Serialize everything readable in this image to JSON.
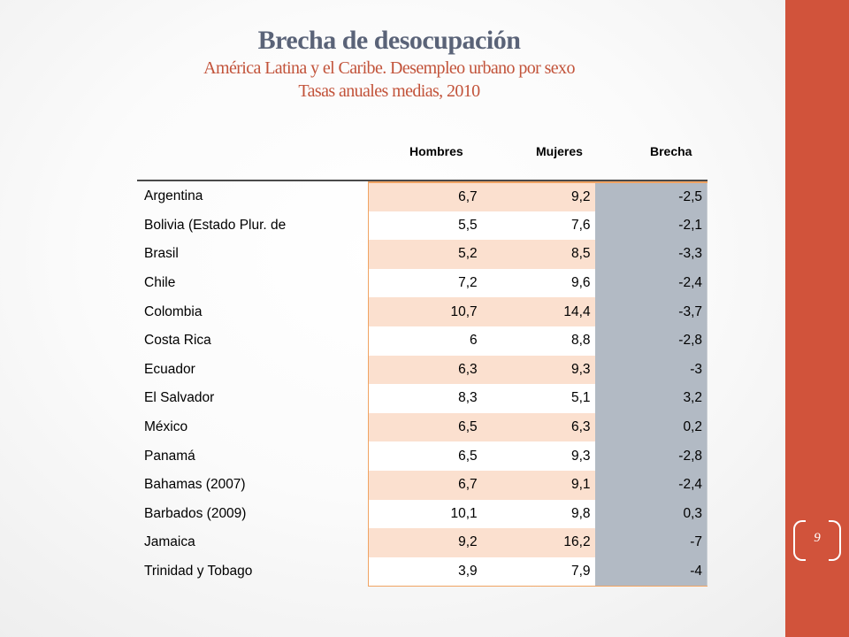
{
  "title": {
    "main": "Brecha de desocupación",
    "line2": "América Latina y el Caribe. Desempleo urbano por sexo",
    "line3": "Tasas anuales medias, 2010"
  },
  "table": {
    "headers": [
      "Hombres",
      "Mujeres",
      "Brecha"
    ],
    "rows": [
      [
        "Argentina",
        "6,7",
        "9,2",
        "-2,5"
      ],
      [
        "Bolivia (Estado Plur. de",
        "5,5",
        "7,6",
        "-2,1"
      ],
      [
        "Brasil",
        "5,2",
        "8,5",
        "-3,3"
      ],
      [
        "Chile",
        "7,2",
        "9,6",
        "-2,4"
      ],
      [
        "Colombia",
        "10,7",
        "14,4",
        "-3,7"
      ],
      [
        "Costa Rica",
        "6",
        "8,8",
        "-2,8"
      ],
      [
        "Ecuador",
        "6,3",
        "9,3",
        "-3"
      ],
      [
        "El Salvador",
        "8,3",
        "5,1",
        "3,2"
      ],
      [
        "México",
        "6,5",
        "6,3",
        "0,2"
      ],
      [
        "Panamá",
        "6,5",
        "9,3",
        "-2,8"
      ],
      [
        "Bahamas (2007)",
        "6,7",
        "9,1",
        "-2,4"
      ],
      [
        "Barbados (2009)",
        "10,1",
        "9,8",
        "0,3"
      ],
      [
        "Jamaica",
        "9,2",
        "16,2",
        "-7"
      ],
      [
        "Trinidad y Tobago",
        "3,9",
        "7,9",
        "-4"
      ]
    ]
  },
  "page_number": "9",
  "colors": {
    "sidebar": "#d1533b",
    "title": "#5a6378",
    "subtitle": "#c2533a",
    "row_band": "#fbe0cf",
    "gap_column": "#b2bac4"
  }
}
